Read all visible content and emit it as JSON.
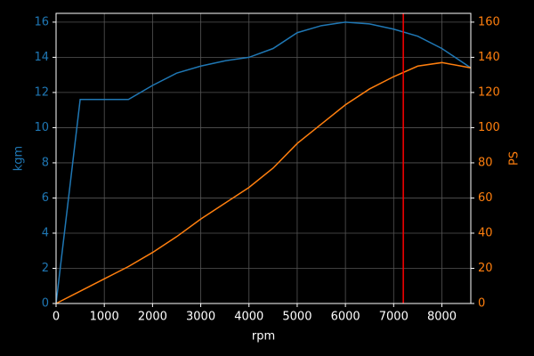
{
  "chart_data": {
    "type": "line",
    "xlabel": "rpm",
    "ylabel": "kgm",
    "y2label": "PS",
    "x": [
      0,
      500,
      1000,
      1500,
      2000,
      2500,
      3000,
      3500,
      4000,
      4500,
      5000,
      5500,
      6000,
      6500,
      7000,
      7500,
      8000,
      8600
    ],
    "series": [
      {
        "name": "kgm",
        "color": "#1f77b4",
        "values": [
          0,
          11.6,
          11.6,
          11.6,
          12.4,
          13.1,
          13.5,
          13.8,
          14.0,
          14.5,
          15.4,
          15.8,
          16.0,
          15.9,
          15.6,
          15.2,
          14.5,
          13.4
        ]
      },
      {
        "name": "PS",
        "color": "#ff7f0e",
        "axis": "y2",
        "values": [
          0,
          7,
          14,
          21,
          29,
          38,
          48,
          57,
          66,
          77,
          91,
          102,
          113,
          122,
          129,
          135,
          137,
          134
        ]
      }
    ],
    "vline": {
      "x": 7200,
      "color": "#ff0000"
    },
    "xlim": [
      0,
      8600
    ],
    "xticks": [
      0,
      1000,
      2000,
      3000,
      4000,
      5000,
      6000,
      7000,
      8000
    ],
    "ylim": [
      0,
      16.5
    ],
    "yticks": [
      0,
      2,
      4,
      6,
      8,
      10,
      12,
      14,
      16
    ],
    "y2lim": [
      0,
      165
    ],
    "y2ticks": [
      0,
      20,
      40,
      60,
      80,
      100,
      120,
      140,
      160
    ],
    "grid": true
  }
}
